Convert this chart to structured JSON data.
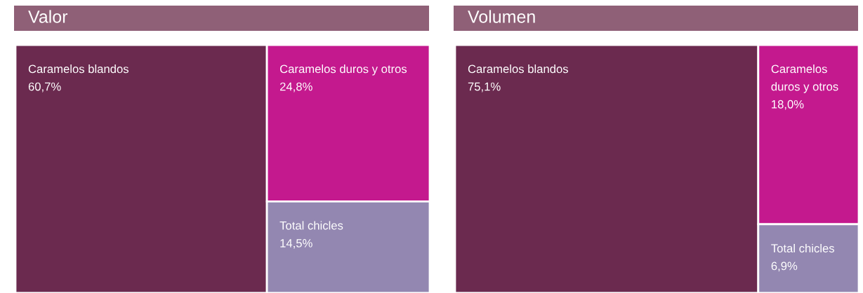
{
  "chart_data": [
    {
      "type": "other",
      "title": "Valor",
      "categories": [
        "Caramelos blandos",
        "Caramelos duros y otros",
        "Total chicles"
      ],
      "values": [
        60.7,
        24.8,
        14.5
      ],
      "value_labels": [
        "60,7%",
        "24,8%",
        "14,5%"
      ],
      "colors": [
        "#6b2a4f",
        "#c4198e",
        "#9387b1"
      ]
    },
    {
      "type": "other",
      "title": "Volumen",
      "categories": [
        "Caramelos blandos",
        "Caramelos duros y otros",
        "Total chicles"
      ],
      "values": [
        75.1,
        18.0,
        6.9
      ],
      "value_labels": [
        "75,1%",
        "18,0%",
        "6,9%"
      ],
      "colors": [
        "#6b2a4f",
        "#c4198e",
        "#9387b1"
      ]
    }
  ]
}
